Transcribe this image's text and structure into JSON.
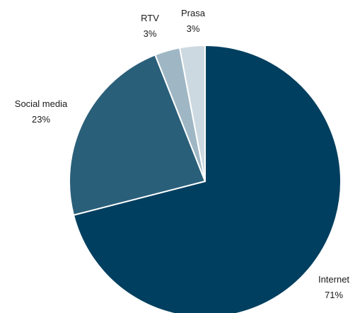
{
  "chart_data": {
    "type": "pie",
    "slices": [
      {
        "label": "Internet",
        "value": 71,
        "value_label": "71%",
        "color": "#003f5f"
      },
      {
        "label": "Social media",
        "value": 23,
        "value_label": "23%",
        "color": "#2a5f7a"
      },
      {
        "label": "RTV",
        "value": 3,
        "value_label": "3%",
        "color": "#9fb7c4"
      },
      {
        "label": "Prasa",
        "value": 3,
        "value_label": "3%",
        "color": "#cdd9e0"
      }
    ],
    "start_angle_deg": 0,
    "direction": "clockwise",
    "legend": "none",
    "data_labels": "outside"
  }
}
